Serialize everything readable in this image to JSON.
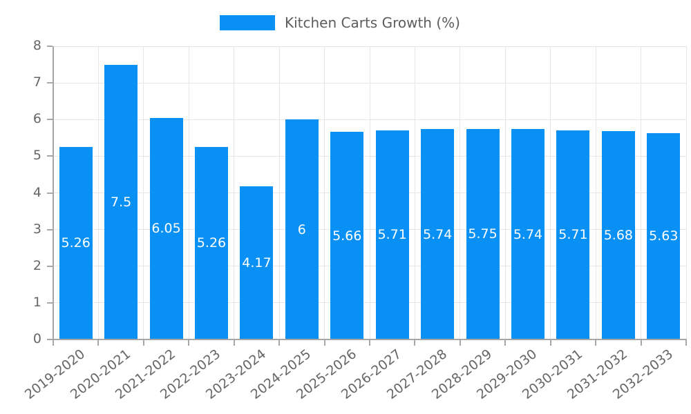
{
  "chart_data": {
    "type": "bar",
    "legend": "Kitchen Carts Growth (%)",
    "categories": [
      "2019-2020",
      "2020-2021",
      "2021-2022",
      "2022-2023",
      "2023-2024",
      "2024-2025",
      "2025-2026",
      "2026-2027",
      "2027-2028",
      "2028-2029",
      "2029-2030",
      "2030-2031",
      "2031-2032",
      "2032-2033"
    ],
    "values": [
      5.26,
      7.5,
      6.05,
      5.26,
      4.17,
      6,
      5.66,
      5.71,
      5.74,
      5.75,
      5.74,
      5.71,
      5.68,
      5.63
    ],
    "value_labels": [
      "5.26",
      "7.5",
      "6.05",
      "5.26",
      "4.17",
      "6",
      "5.66",
      "5.71",
      "5.74",
      "5.75",
      "5.74",
      "5.71",
      "5.68",
      "5.63"
    ],
    "xlabel": "",
    "ylabel": "",
    "ylim": [
      0,
      8
    ],
    "yticks": [
      0,
      1,
      2,
      3,
      4,
      5,
      6,
      7,
      8
    ],
    "grid": true,
    "legend_position": "top-center",
    "x_tick_rotation_deg": -38,
    "colors": {
      "bar": "#0890f5",
      "value_label": "#ffffff",
      "axis_line": "#a6a6a6",
      "grid_line": "#e6e6e6",
      "tick_label": "#666666",
      "legend_text": "#5c5c5c",
      "background": "#ffffff"
    }
  }
}
